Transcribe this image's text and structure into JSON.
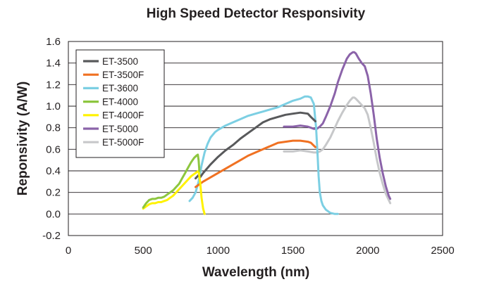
{
  "chart_data": {
    "type": "line",
    "title": "High Speed Detector Responsivity",
    "xlabel": "Wavelength (nm)",
    "ylabel": "Reponsivity (A/W)",
    "xlim": [
      0,
      2500
    ],
    "ylim": [
      -0.2,
      1.6
    ],
    "xticks": [
      0,
      500,
      1000,
      1500,
      2000,
      2500
    ],
    "yticks": [
      -0.2,
      0.0,
      0.2,
      0.4,
      0.6,
      0.8,
      1.0,
      1.2,
      1.4,
      1.6
    ],
    "ytick_labels": [
      "-0.2",
      "0.0",
      "0.2",
      "0.4",
      "0.6",
      "0.8",
      "1.0",
      "1.2",
      "1.4",
      "1.6"
    ],
    "xtick_labels": [
      "0",
      "500",
      "1000",
      "1500",
      "2000",
      "2500"
    ],
    "grid": "horizontal",
    "legend_position": "top-left",
    "series": [
      {
        "name": "ET-3500",
        "color": "#58595b",
        "x": [
          850,
          870,
          880,
          900,
          950,
          1000,
          1050,
          1100,
          1150,
          1200,
          1250,
          1300,
          1350,
          1400,
          1450,
          1500,
          1550,
          1600,
          1620,
          1650
        ],
        "y": [
          0.33,
          0.36,
          0.34,
          0.38,
          0.46,
          0.53,
          0.59,
          0.64,
          0.7,
          0.75,
          0.8,
          0.85,
          0.88,
          0.9,
          0.92,
          0.93,
          0.94,
          0.93,
          0.9,
          0.86
        ]
      },
      {
        "name": "ET-3500F",
        "color": "#f07122",
        "x": [
          850,
          900,
          950,
          1000,
          1050,
          1100,
          1150,
          1200,
          1250,
          1300,
          1350,
          1400,
          1450,
          1500,
          1550,
          1600,
          1620,
          1650
        ],
        "y": [
          0.25,
          0.3,
          0.34,
          0.38,
          0.42,
          0.46,
          0.5,
          0.54,
          0.57,
          0.6,
          0.63,
          0.66,
          0.67,
          0.68,
          0.68,
          0.67,
          0.66,
          0.62
        ]
      },
      {
        "name": "ET-3600",
        "color": "#7ccfe3",
        "x": [
          810,
          830,
          850,
          870,
          890,
          910,
          930,
          950,
          980,
          1000,
          1050,
          1100,
          1150,
          1200,
          1250,
          1300,
          1350,
          1400,
          1450,
          1500,
          1550,
          1580,
          1600,
          1620,
          1640,
          1655,
          1665,
          1672,
          1680,
          1690,
          1700,
          1720,
          1750,
          1780,
          1800
        ],
        "y": [
          0.12,
          0.15,
          0.2,
          0.3,
          0.45,
          0.57,
          0.65,
          0.71,
          0.76,
          0.78,
          0.82,
          0.85,
          0.88,
          0.91,
          0.93,
          0.95,
          0.97,
          0.99,
          1.02,
          1.05,
          1.07,
          1.09,
          1.09,
          1.08,
          1.02,
          0.8,
          0.55,
          0.35,
          0.2,
          0.12,
          0.08,
          0.04,
          0.01,
          0.0,
          0.0
        ]
      },
      {
        "name": "ET-4000",
        "color": "#8dc63f",
        "x": [
          500,
          520,
          540,
          560,
          580,
          600,
          620,
          640,
          660,
          680,
          700,
          720,
          740,
          760,
          780,
          800,
          820,
          840,
          855,
          865,
          870,
          875
        ],
        "y": [
          0.06,
          0.1,
          0.13,
          0.14,
          0.14,
          0.15,
          0.15,
          0.16,
          0.18,
          0.2,
          0.22,
          0.25,
          0.28,
          0.33,
          0.38,
          0.43,
          0.48,
          0.52,
          0.54,
          0.55,
          0.5,
          0.4
        ]
      },
      {
        "name": "ET-4000F",
        "color": "#fff200",
        "x": [
          500,
          520,
          540,
          560,
          580,
          600,
          620,
          640,
          660,
          680,
          700,
          720,
          740,
          760,
          780,
          800,
          820,
          840,
          860,
          870,
          880,
          890,
          900,
          910
        ],
        "y": [
          0.05,
          0.07,
          0.09,
          0.1,
          0.1,
          0.11,
          0.11,
          0.12,
          0.13,
          0.15,
          0.17,
          0.2,
          0.23,
          0.26,
          0.29,
          0.32,
          0.35,
          0.37,
          0.39,
          0.4,
          0.3,
          0.15,
          0.05,
          0.0
        ]
      },
      {
        "name": "ET-5000",
        "color": "#8b63a9",
        "x": [
          1440,
          1500,
          1550,
          1600,
          1640,
          1660,
          1680,
          1700,
          1720,
          1750,
          1780,
          1800,
          1830,
          1860,
          1880,
          1900,
          1910,
          1920,
          1940,
          1960,
          1980,
          2000,
          2020,
          2040,
          2060,
          2080,
          2100,
          2120,
          2140,
          2150
        ],
        "y": [
          0.81,
          0.81,
          0.82,
          0.81,
          0.79,
          0.79,
          0.81,
          0.84,
          0.9,
          1.0,
          1.12,
          1.22,
          1.34,
          1.44,
          1.48,
          1.5,
          1.5,
          1.49,
          1.44,
          1.4,
          1.37,
          1.28,
          1.12,
          0.92,
          0.7,
          0.52,
          0.38,
          0.26,
          0.17,
          0.14
        ]
      },
      {
        "name": "ET-5000F",
        "color": "#c7c8ca",
        "x": [
          1440,
          1500,
          1550,
          1600,
          1640,
          1660,
          1680,
          1700,
          1720,
          1750,
          1780,
          1800,
          1830,
          1860,
          1880,
          1900,
          1910,
          1920,
          1940,
          1960,
          1980,
          2000,
          2020,
          2040,
          2060,
          2080,
          2100,
          2120,
          2140,
          2150
        ],
        "y": [
          0.58,
          0.58,
          0.59,
          0.58,
          0.57,
          0.57,
          0.58,
          0.6,
          0.64,
          0.71,
          0.8,
          0.86,
          0.94,
          1.01,
          1.05,
          1.08,
          1.08,
          1.07,
          1.04,
          1.01,
          0.98,
          0.92,
          0.8,
          0.66,
          0.51,
          0.38,
          0.28,
          0.19,
          0.13,
          0.1
        ]
      }
    ]
  }
}
